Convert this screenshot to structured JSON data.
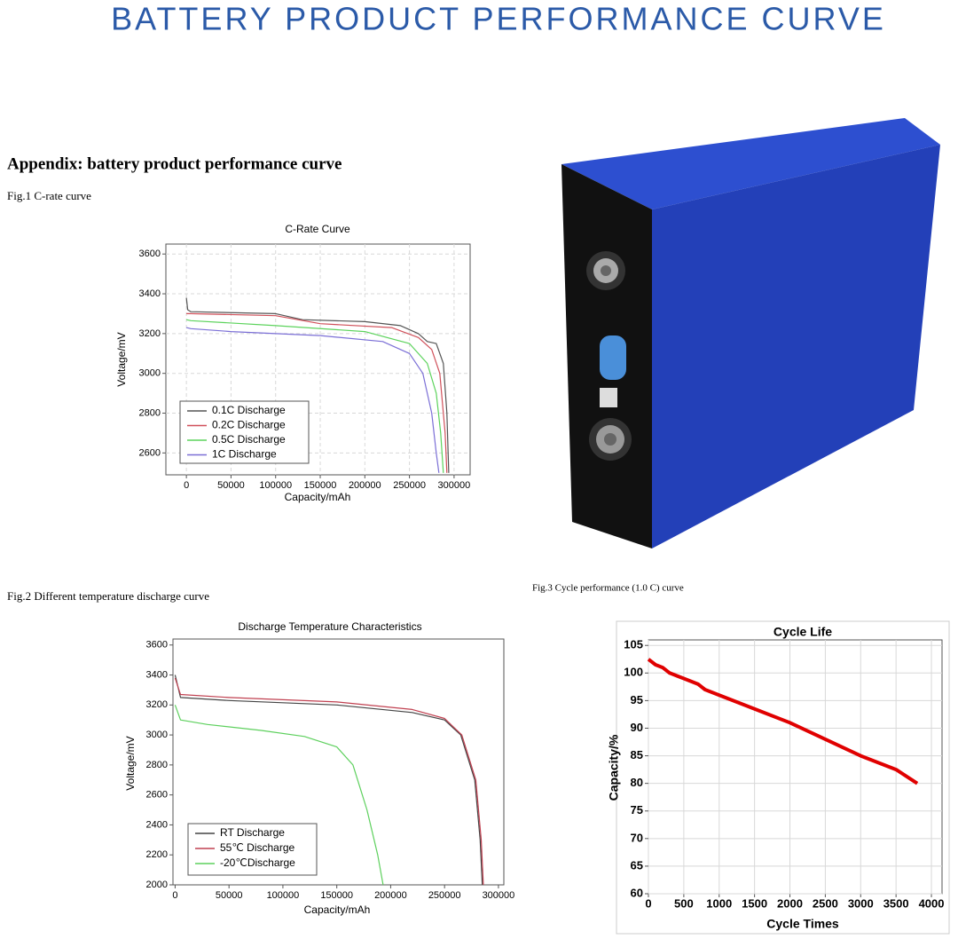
{
  "title": "BATTERY PRODUCT PERFORMANCE CURVE",
  "appendix_heading": "Appendix: battery product performance curve",
  "fig1_caption": "Fig.1 C-rate curve",
  "fig2_caption": "Fig.2 Different temperature discharge curve",
  "fig3_caption": "Fig.3 Cycle performance (1.0 C) curve",
  "chart_data": [
    {
      "type": "line",
      "title": "C-Rate Curve",
      "x_label": "Capacity/mAh",
      "y_label": "Voltage/mV",
      "xlim": [
        -23000,
        318000
      ],
      "xticks": [
        0,
        50000,
        100000,
        150000,
        200000,
        250000,
        300000
      ],
      "ylim": [
        2490,
        3650
      ],
      "yticks": [
        2600,
        2800,
        3000,
        3200,
        3400,
        3600
      ],
      "grid": "dashed",
      "legend": "lower left",
      "series": [
        {
          "name": "0.1C Discharge",
          "color": "#555555",
          "x": [
            0,
            1500,
            5000,
            100000,
            130000,
            200000,
            240000,
            260000,
            270000,
            280000,
            288000,
            292000,
            294000
          ],
          "values": [
            3380,
            3320,
            3310,
            3300,
            3270,
            3260,
            3240,
            3200,
            3160,
            3150,
            3050,
            2800,
            2500
          ]
        },
        {
          "name": "0.2C Discharge",
          "color": "#d0505a",
          "x": [
            0,
            5000,
            100000,
            150000,
            230000,
            260000,
            275000,
            284000,
            290000,
            292000
          ],
          "values": [
            3300,
            3300,
            3290,
            3250,
            3230,
            3180,
            3120,
            3000,
            2700,
            2500
          ]
        },
        {
          "name": "0.5C Discharge",
          "color": "#5cd35c",
          "x": [
            0,
            5000,
            100000,
            200000,
            250000,
            270000,
            280000,
            285000,
            288000
          ],
          "values": [
            3270,
            3265,
            3240,
            3210,
            3150,
            3050,
            2900,
            2700,
            2500
          ]
        },
        {
          "name": "1C Discharge",
          "color": "#7b6fd6",
          "x": [
            0,
            5000,
            50000,
            150000,
            220000,
            250000,
            265000,
            275000,
            280000,
            283000
          ],
          "values": [
            3230,
            3225,
            3210,
            3190,
            3160,
            3100,
            3000,
            2800,
            2600,
            2500
          ]
        }
      ]
    },
    {
      "type": "line",
      "title": "Discharge Temperature Characteristics",
      "x_label": "Capacity/mAh",
      "y_label": "Voltage/mV",
      "xlim": [
        -2000,
        305000
      ],
      "xticks": [
        0,
        50000,
        100000,
        150000,
        200000,
        250000,
        300000
      ],
      "ylim": [
        2000,
        3640
      ],
      "yticks": [
        2000,
        2200,
        2400,
        2600,
        2800,
        3000,
        3200,
        3400,
        3600
      ],
      "grid": false,
      "legend": "lower left",
      "series": [
        {
          "name": "RT   Discharge",
          "color": "#444444",
          "x": [
            0,
            5000,
            50000,
            150000,
            220000,
            250000,
            265000,
            278000,
            283000,
            285000
          ],
          "values": [
            3400,
            3250,
            3230,
            3200,
            3150,
            3100,
            3000,
            2700,
            2300,
            2000
          ]
        },
        {
          "name": "55℃ Discharge",
          "color": "#c04050",
          "x": [
            0,
            5000,
            50000,
            150000,
            220000,
            250000,
            266000,
            279000,
            284000,
            286000
          ],
          "values": [
            3380,
            3270,
            3250,
            3220,
            3170,
            3110,
            3000,
            2700,
            2300,
            2000
          ]
        },
        {
          "name": "-20℃Discharge",
          "color": "#5dd05d",
          "x": [
            0,
            5000,
            30000,
            80000,
            120000,
            150000,
            165000,
            178000,
            188000,
            193000
          ],
          "values": [
            3200,
            3100,
            3070,
            3030,
            2990,
            2920,
            2800,
            2500,
            2200,
            2000
          ]
        }
      ]
    },
    {
      "type": "line",
      "title": "Cycle Life",
      "x_label": "Cycle Times",
      "y_label": "Capacity/%",
      "xlim": [
        0,
        4150
      ],
      "xticks": [
        0,
        500,
        1000,
        1500,
        2000,
        2500,
        3000,
        3500,
        4000
      ],
      "ylim": [
        60,
        106
      ],
      "yticks": [
        60,
        65,
        70,
        75,
        80,
        85,
        90,
        95,
        100,
        105
      ],
      "grid": "solid",
      "series": [
        {
          "color": "#e00000",
          "x": [
            0,
            100,
            200,
            300,
            500,
            700,
            800,
            1000,
            1500,
            2000,
            2500,
            3000,
            3500,
            3800
          ],
          "values": [
            102.5,
            101.5,
            101,
            100,
            99,
            98,
            97,
            96,
            93.5,
            91,
            88,
            85,
            82.5,
            80
          ]
        }
      ]
    }
  ]
}
